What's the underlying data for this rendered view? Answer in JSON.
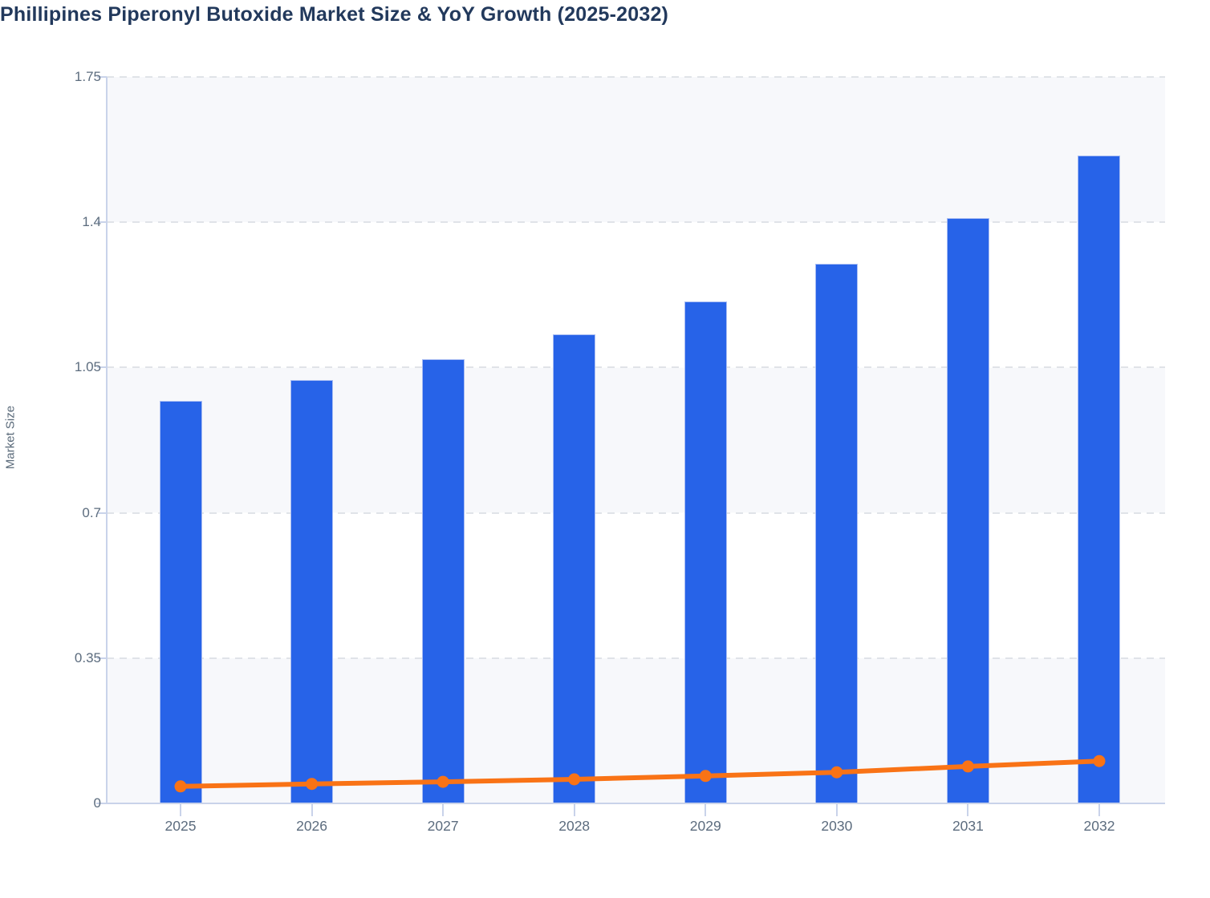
{
  "title": "Phillipines Piperonyl Butoxide Market Size & YoY Growth (2025-2032)",
  "y_axis_title": "Market Size",
  "colors": {
    "title": "#22395c",
    "bar": "#2763e8",
    "bar_border": "#a9bdf3",
    "line": "#f97316",
    "axis_line": "#c9d3ea",
    "gridline": "#e0e3e8",
    "band": "#f7f8fb",
    "tick_text": "#5c6c7e"
  },
  "chart_data": {
    "type": "bar",
    "title": "Phillipines Piperonyl Butoxide Market Size & YoY Growth (2025-2032)",
    "categories": [
      "2025",
      "2026",
      "2027",
      "2028",
      "2029",
      "2030",
      "2031",
      "2032"
    ],
    "series": [
      {
        "name": "Market Size",
        "type": "bar",
        "values": [
          0.97,
          1.02,
          1.07,
          1.13,
          1.21,
          1.3,
          1.41,
          1.56
        ]
      },
      {
        "name": "YoY Growth",
        "type": "line",
        "values": [
          0.041,
          0.047,
          0.052,
          0.058,
          0.066,
          0.075,
          0.089,
          0.102
        ]
      }
    ],
    "xlabel": "",
    "ylabel": "Market Size",
    "ylim": [
      0,
      1.75
    ],
    "ytick_values": [
      0,
      0.35,
      0.7,
      1.05,
      1.4,
      1.75
    ],
    "ytick_labels": [
      "0",
      "0.35",
      "0.7",
      "1.05",
      "1.4",
      "1.75"
    ],
    "grid": "horizontal-dashed",
    "background_bands": "alternating",
    "legend": "none"
  }
}
